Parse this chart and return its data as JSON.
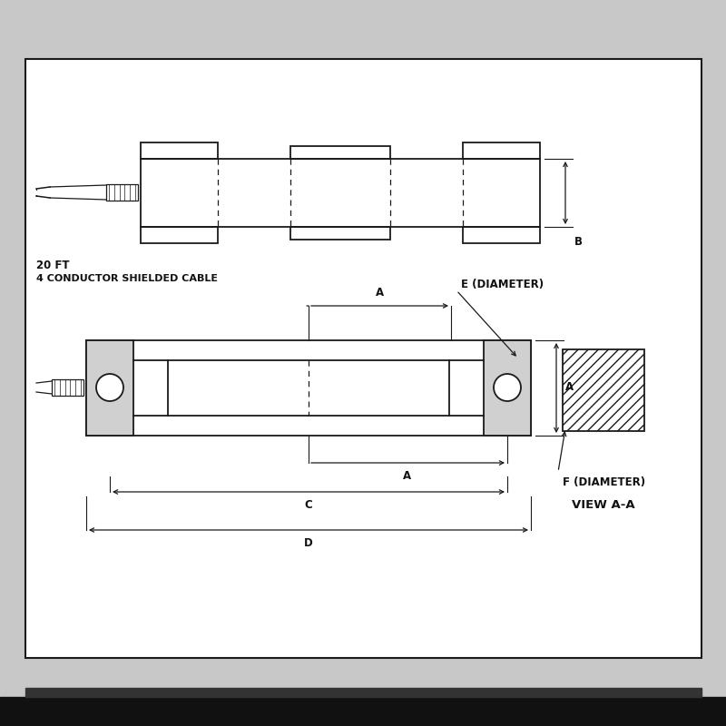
{
  "bg_color": "#c8c8c8",
  "panel_color": "#e8e8e8",
  "line_color": "#1a1a1a",
  "text_color": "#111111",
  "label_20ft": "20 FT",
  "label_cable": "4 CONDUCTOR SHIELDED CABLE",
  "label_B": "B",
  "label_A": "A",
  "label_C": "C",
  "label_D": "D",
  "label_E": "E (DIAMETER)",
  "label_F": "F (DIAMETER)",
  "label_view": "VIEW A-A",
  "font_size": 8.5
}
